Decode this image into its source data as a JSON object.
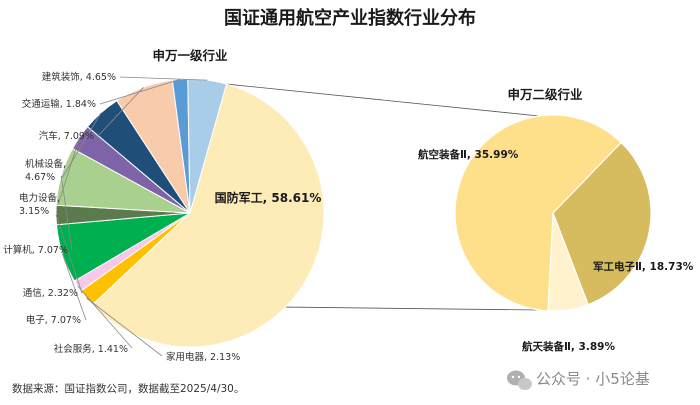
{
  "chart_data": {
    "type": "pie",
    "title": "国证通用航空产业指数行业分布",
    "left_pie": {
      "subtitle": "申万一级行业",
      "slices": [
        {
          "label": "国防军工, 58.61%",
          "value": 58.61,
          "color": "#FDEBB8"
        },
        {
          "label": "家用电器, 2.13%",
          "value": 2.13,
          "color": "#FFC000"
        },
        {
          "label": "社会服务, 1.41%",
          "value": 1.41,
          "color": "#F8C8E8"
        },
        {
          "label": "电子, 7.07%",
          "value": 7.07,
          "color": "#00B050"
        },
        {
          "label": "通信, 2.32%",
          "value": 2.32,
          "color": "#5B7A4E"
        },
        {
          "label": "计算机, 7.07%",
          "value": 7.07,
          "color": "#A9D08E"
        },
        {
          "label": "电力设备,\n3.15%",
          "value": 3.15,
          "color": "#7F63A8"
        },
        {
          "label": "机械设备,\n4.67%",
          "value": 4.67,
          "color": "#1F4E79"
        },
        {
          "label": "汽车, 7.09%",
          "value": 7.09,
          "color": "#F8CBAD"
        },
        {
          "label": "交通运输, 1.84%",
          "value": 1.84,
          "color": "#5B9BD5"
        },
        {
          "label": "建筑装饰, 4.65%",
          "value": 4.65,
          "color": "#A9CCE9"
        }
      ]
    },
    "right_pie": {
      "subtitle": "申万二级行业",
      "slices": [
        {
          "label": "航空装备Ⅱ, 35.99%",
          "value": 35.99,
          "color": "#FFE08A"
        },
        {
          "label": "军工电子Ⅱ, 18.73%",
          "value": 18.73,
          "color": "#D6BC5E"
        },
        {
          "label": "航天装备Ⅱ, 3.89%",
          "value": 3.89,
          "color": "#FFF2CC"
        }
      ]
    }
  },
  "footer": {
    "source": "数据来源：国证指数公司，数据截至2025/4/30。"
  },
  "watermark": {
    "text": "公众号 · 小5论基"
  }
}
